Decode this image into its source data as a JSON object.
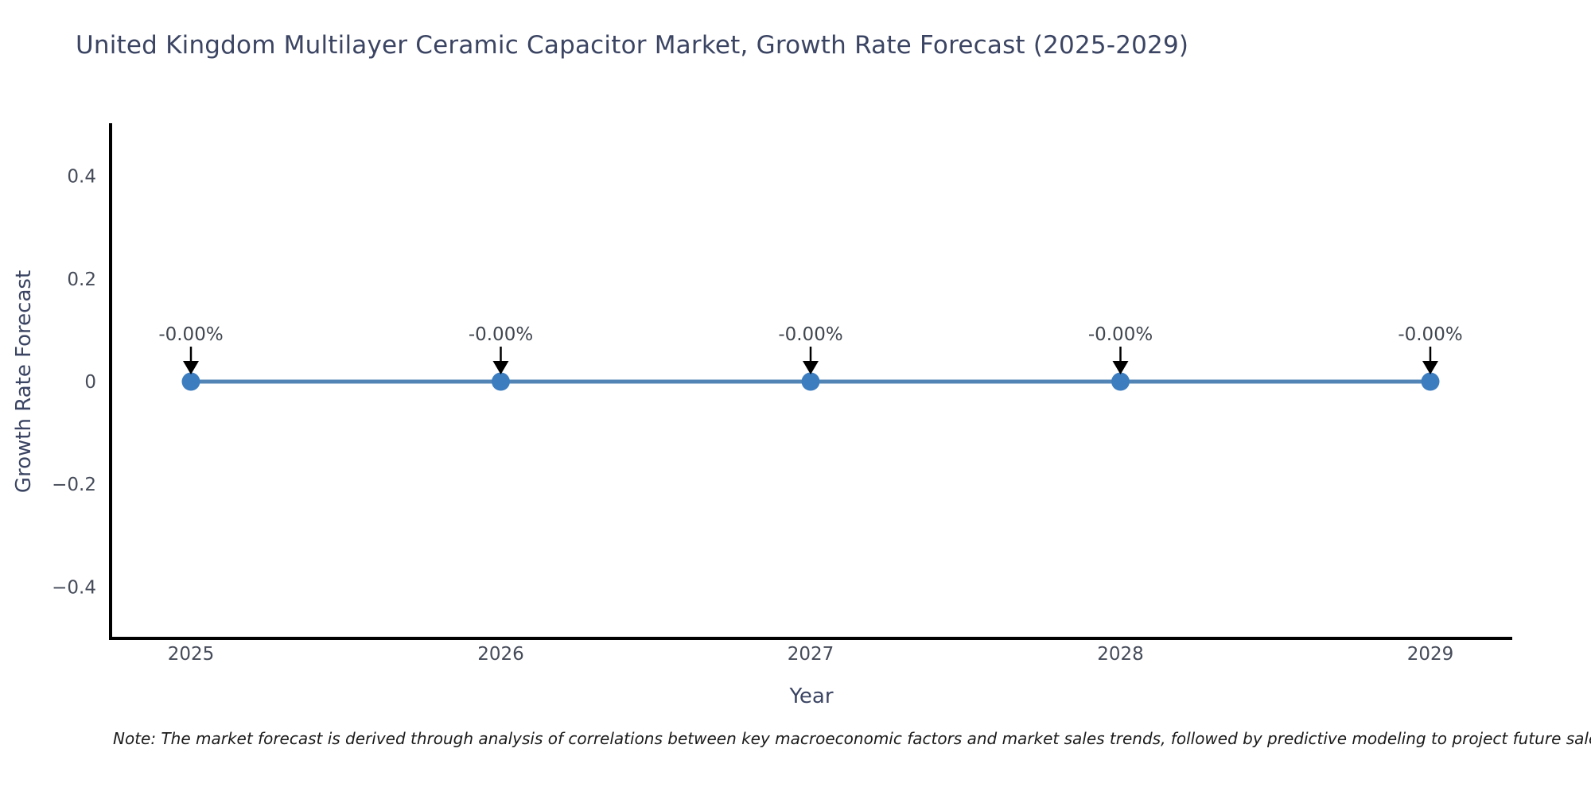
{
  "chart_data": {
    "type": "line",
    "title": "United Kingdom Multilayer Ceramic Capacitor Market, Growth Rate Forecast (2025-2029)",
    "xlabel": "Year",
    "ylabel": "Growth Rate Forecast",
    "note": "Note: The market forecast is derived through analysis of correlations between key macroeconomic factors and market sales trends, followed by predictive modeling to project future sales.",
    "x": [
      "2025",
      "2026",
      "2027",
      "2028",
      "2029"
    ],
    "series": [
      {
        "name": "Growth Rate Forecast",
        "values": [
          0,
          0,
          0,
          0,
          0
        ],
        "point_labels": [
          "-0.00%",
          "-0.00%",
          "-0.00%",
          "-0.00%",
          "-0.00%"
        ]
      }
    ],
    "ylim": [
      -0.5,
      0.5
    ],
    "yticks": [
      {
        "value": 0.4,
        "label": "0.4"
      },
      {
        "value": 0.2,
        "label": "0.2"
      },
      {
        "value": 0,
        "label": "0"
      },
      {
        "value": -0.2,
        "label": "−0.2"
      },
      {
        "value": -0.4,
        "label": "−0.4"
      }
    ],
    "grid": false,
    "legend": "none",
    "colors": {
      "line": "#5285b5",
      "marker": "#3c7dc0",
      "spine": "#000000",
      "arrow": "#000000",
      "title_text": "#3b4563",
      "axis_label_text": "#3b4563",
      "tick_text": "#454b59",
      "annotation_text": "#40464f",
      "note_text": "#1a1a1a",
      "background": "#ffffff"
    }
  }
}
